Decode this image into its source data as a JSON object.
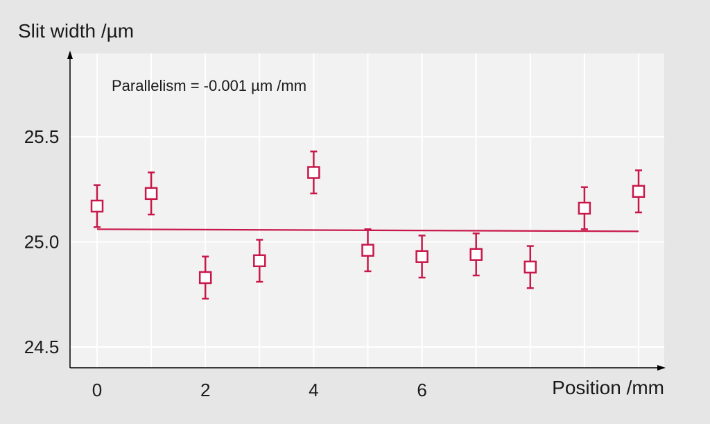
{
  "chart_data": {
    "type": "scatter",
    "ylabel": "Slit width /µm",
    "xlabel": "Position /mm",
    "annotation": "Parallelism = -0.001 µm /mm",
    "xlim": [
      -0.5,
      10.5
    ],
    "ylim": [
      24.4,
      25.85
    ],
    "x_ticks": [
      0,
      2,
      4,
      6
    ],
    "x_tick_labels": [
      "0",
      "2",
      "4",
      "6"
    ],
    "x_gridlines": [
      0,
      1,
      2,
      3,
      4,
      5,
      6,
      7,
      8,
      9,
      10
    ],
    "y_ticks": [
      24.5,
      25.0,
      25.5
    ],
    "y_tick_labels": [
      "24.5",
      "25.0",
      "25.5"
    ],
    "grid": true,
    "colors": {
      "series": "#c8184a",
      "plot_bg": "#f2f2f2",
      "page_bg": "#e6e6e6",
      "grid": "#ffffff"
    },
    "points": [
      {
        "x": 0,
        "y": 25.17,
        "err": 0.1
      },
      {
        "x": 1,
        "y": 25.23,
        "err": 0.1
      },
      {
        "x": 2,
        "y": 24.83,
        "err": 0.1
      },
      {
        "x": 3,
        "y": 24.91,
        "err": 0.1
      },
      {
        "x": 4,
        "y": 25.33,
        "err": 0.1
      },
      {
        "x": 5,
        "y": 24.96,
        "err": 0.1
      },
      {
        "x": 6,
        "y": 24.93,
        "err": 0.1
      },
      {
        "x": 7,
        "y": 24.94,
        "err": 0.1
      },
      {
        "x": 8,
        "y": 24.88,
        "err": 0.1
      },
      {
        "x": 9,
        "y": 25.16,
        "err": 0.1
      },
      {
        "x": 10,
        "y": 25.24,
        "err": 0.1
      }
    ],
    "fit_line": {
      "x": [
        0,
        10
      ],
      "y": [
        25.06,
        25.05
      ]
    }
  }
}
